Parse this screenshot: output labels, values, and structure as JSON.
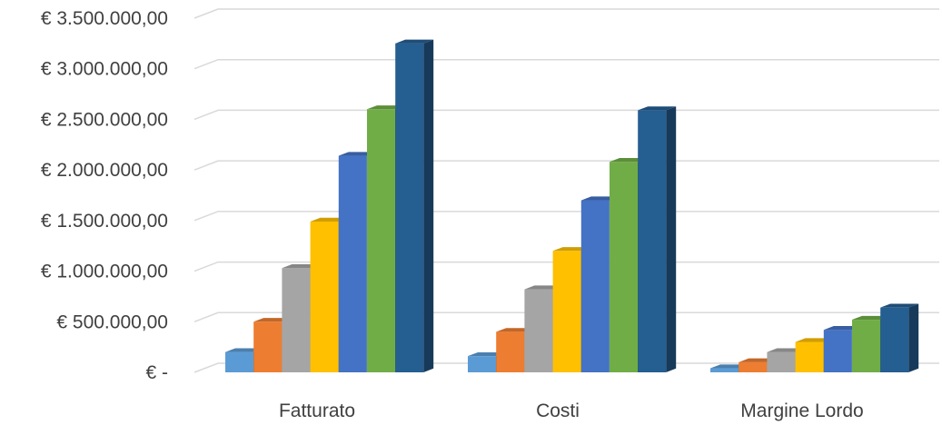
{
  "chart_data": {
    "type": "bar",
    "variant": "3d-clustered-column",
    "title": "",
    "xlabel": "",
    "ylabel": "",
    "categories": [
      "Fatturato",
      "Costi",
      "Margine Lordo"
    ],
    "ylim": [
      0,
      3500000
    ],
    "y_ticks": [
      {
        "value": 0,
        "label": "€ -"
      },
      {
        "value": 500000,
        "label": "€ 500.000,00"
      },
      {
        "value": 1000000,
        "label": "€ 1.000.000,00"
      },
      {
        "value": 1500000,
        "label": "€ 1.500.000,00"
      },
      {
        "value": 2000000,
        "label": "€ 2.000.000,00"
      },
      {
        "value": 2500000,
        "label": "€ 2.500.000,00"
      },
      {
        "value": 3000000,
        "label": "€ 3.000.000,00"
      },
      {
        "value": 3500000,
        "label": "€ 3.500.000,00"
      }
    ],
    "grid": true,
    "legend": "none",
    "series": [
      {
        "color": "#5B9BD5",
        "values": [
          200000,
          160000,
          40000
        ]
      },
      {
        "color": "#ED7D31",
        "values": [
          500000,
          400000,
          100000
        ]
      },
      {
        "color": "#A5A5A5",
        "values": [
          1030000,
          820000,
          200000
        ]
      },
      {
        "color": "#FFC000",
        "values": [
          1490000,
          1200000,
          300000
        ]
      },
      {
        "color": "#4472C4",
        "values": [
          2140000,
          1700000,
          420000
        ]
      },
      {
        "color": "#70AD47",
        "values": [
          2600000,
          2080000,
          520000
        ]
      },
      {
        "color": "#255E91",
        "values": [
          3250000,
          2590000,
          640000
        ]
      }
    ]
  }
}
